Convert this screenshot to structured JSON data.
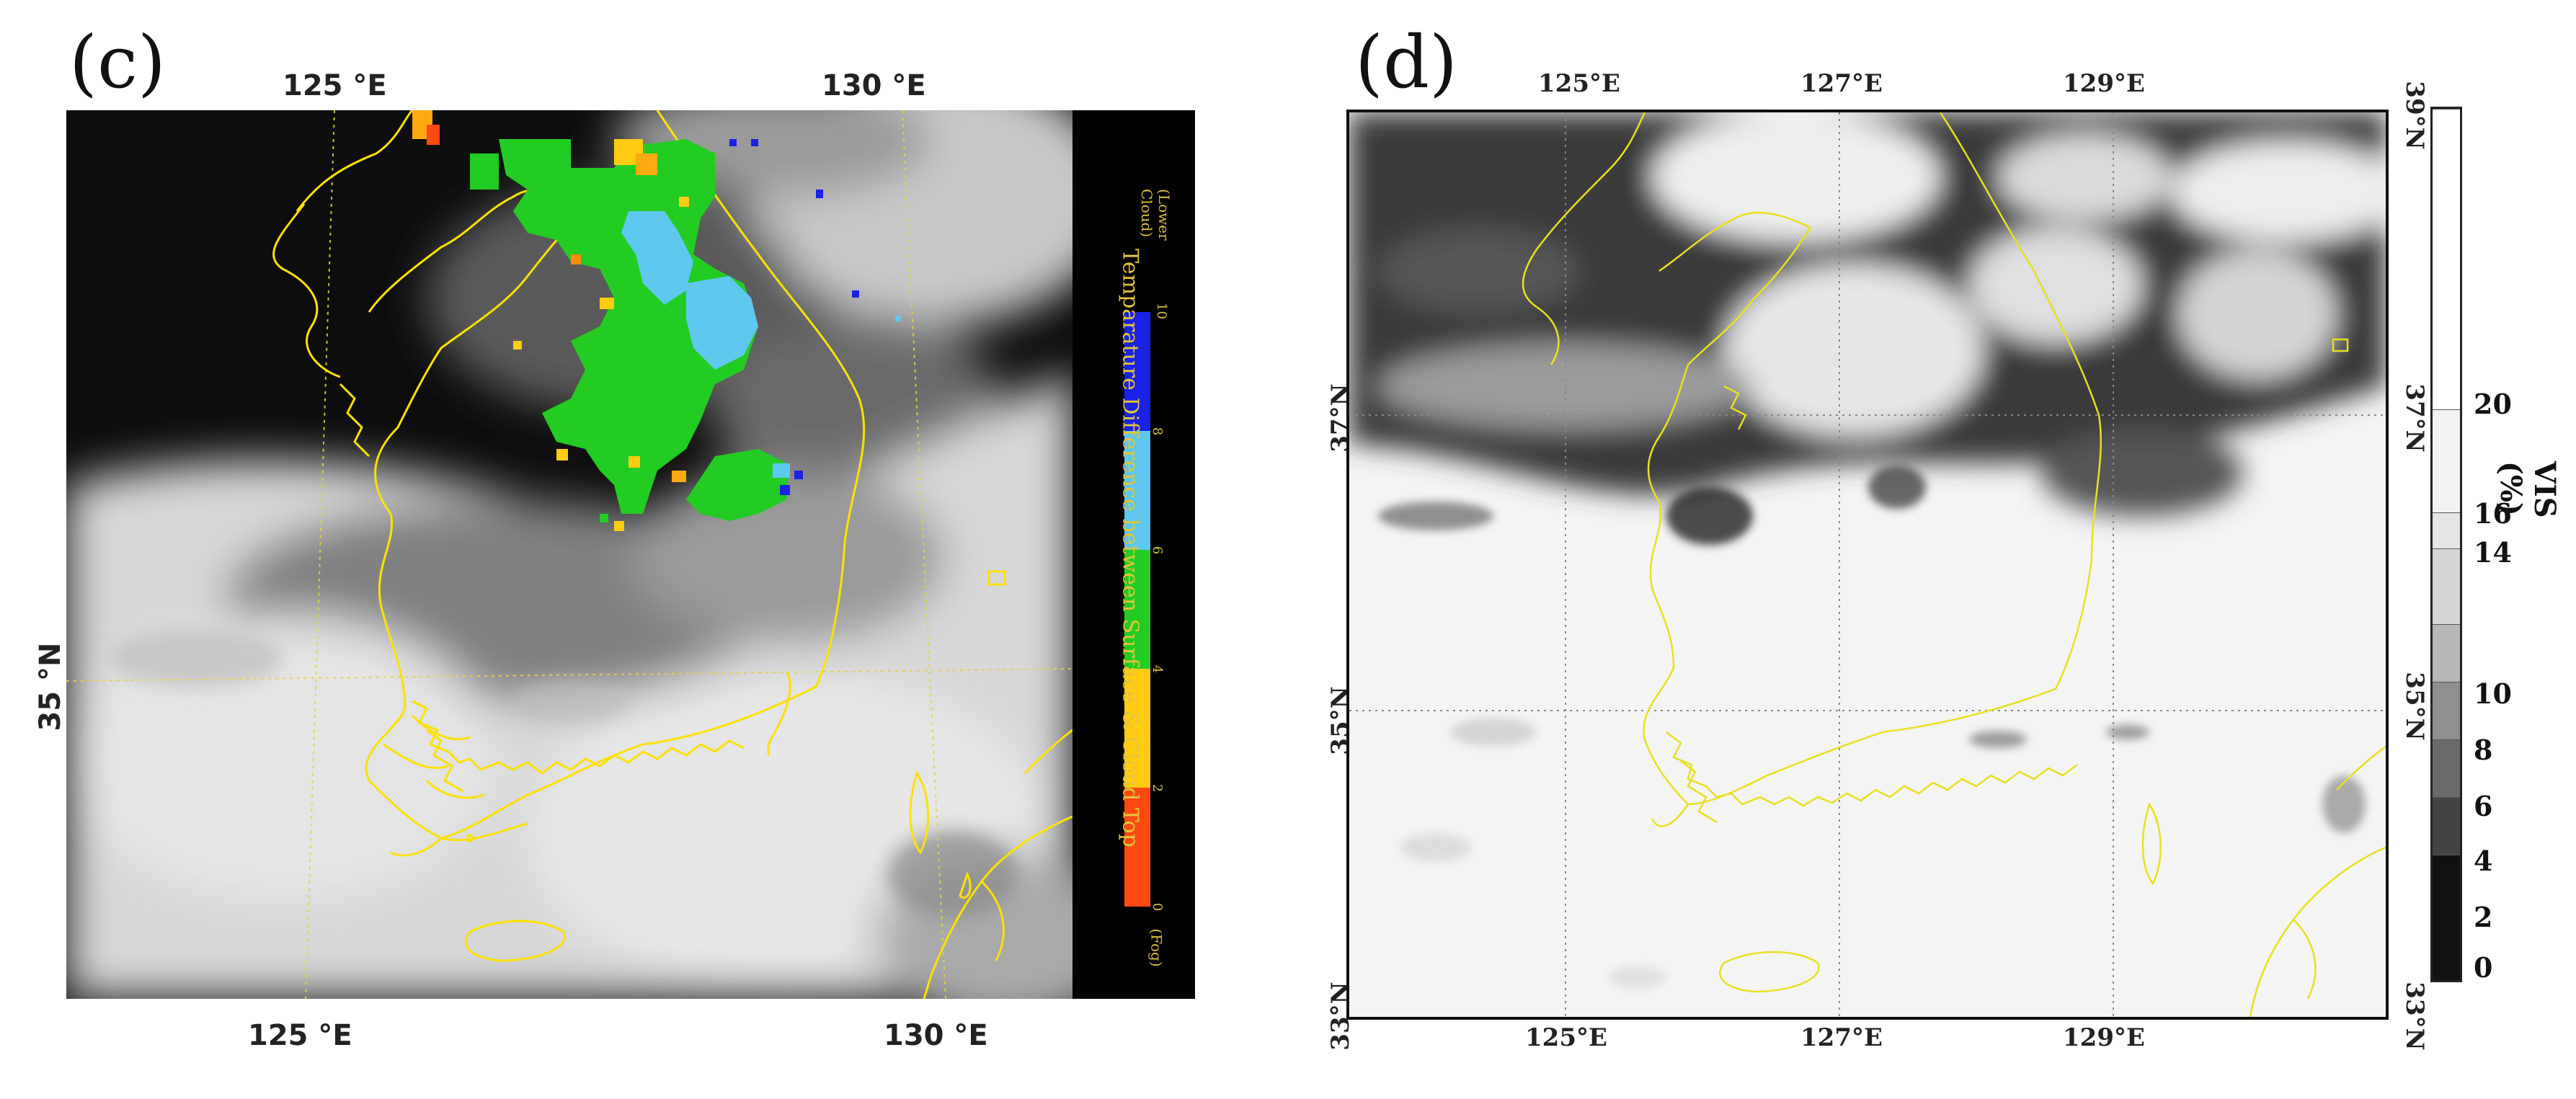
{
  "panel_c": {
    "label": "(c)",
    "top_ticks": [
      "125 °E",
      "130 °E"
    ],
    "bottom_ticks": [
      "125 °E",
      "130 °E"
    ],
    "left_tick": "35 °N",
    "colorbar": {
      "title": "Temparature Difference between Surface & Cloud Top",
      "end_low": "(Fog)",
      "end_high": "(Lower Cloud)",
      "labels": [
        "0",
        "2",
        "4",
        "6",
        "8",
        "10"
      ],
      "colors": [
        "#ff4a12",
        "#ffcc14",
        "#22cc22",
        "#5ec8ee",
        "#1a22e6"
      ],
      "outline_color": "#ffe100"
    }
  },
  "panel_d": {
    "label": "(d)",
    "top_ticks": [
      "125°E",
      "127°E",
      "129°E"
    ],
    "bottom_ticks": [
      "125°E",
      "127°E",
      "129°E"
    ],
    "left_ticks": [
      "37°N",
      "35°N",
      "33°N"
    ],
    "right_ticks": [
      "39°N",
      "37°N",
      "35°N",
      "33°N"
    ],
    "colorbar": {
      "title": "VIS (%)",
      "labels": [
        "0",
        "2",
        "4",
        "6",
        "8",
        "10",
        "14",
        "16",
        "20"
      ],
      "outline_color": "#e8e020"
    }
  }
}
